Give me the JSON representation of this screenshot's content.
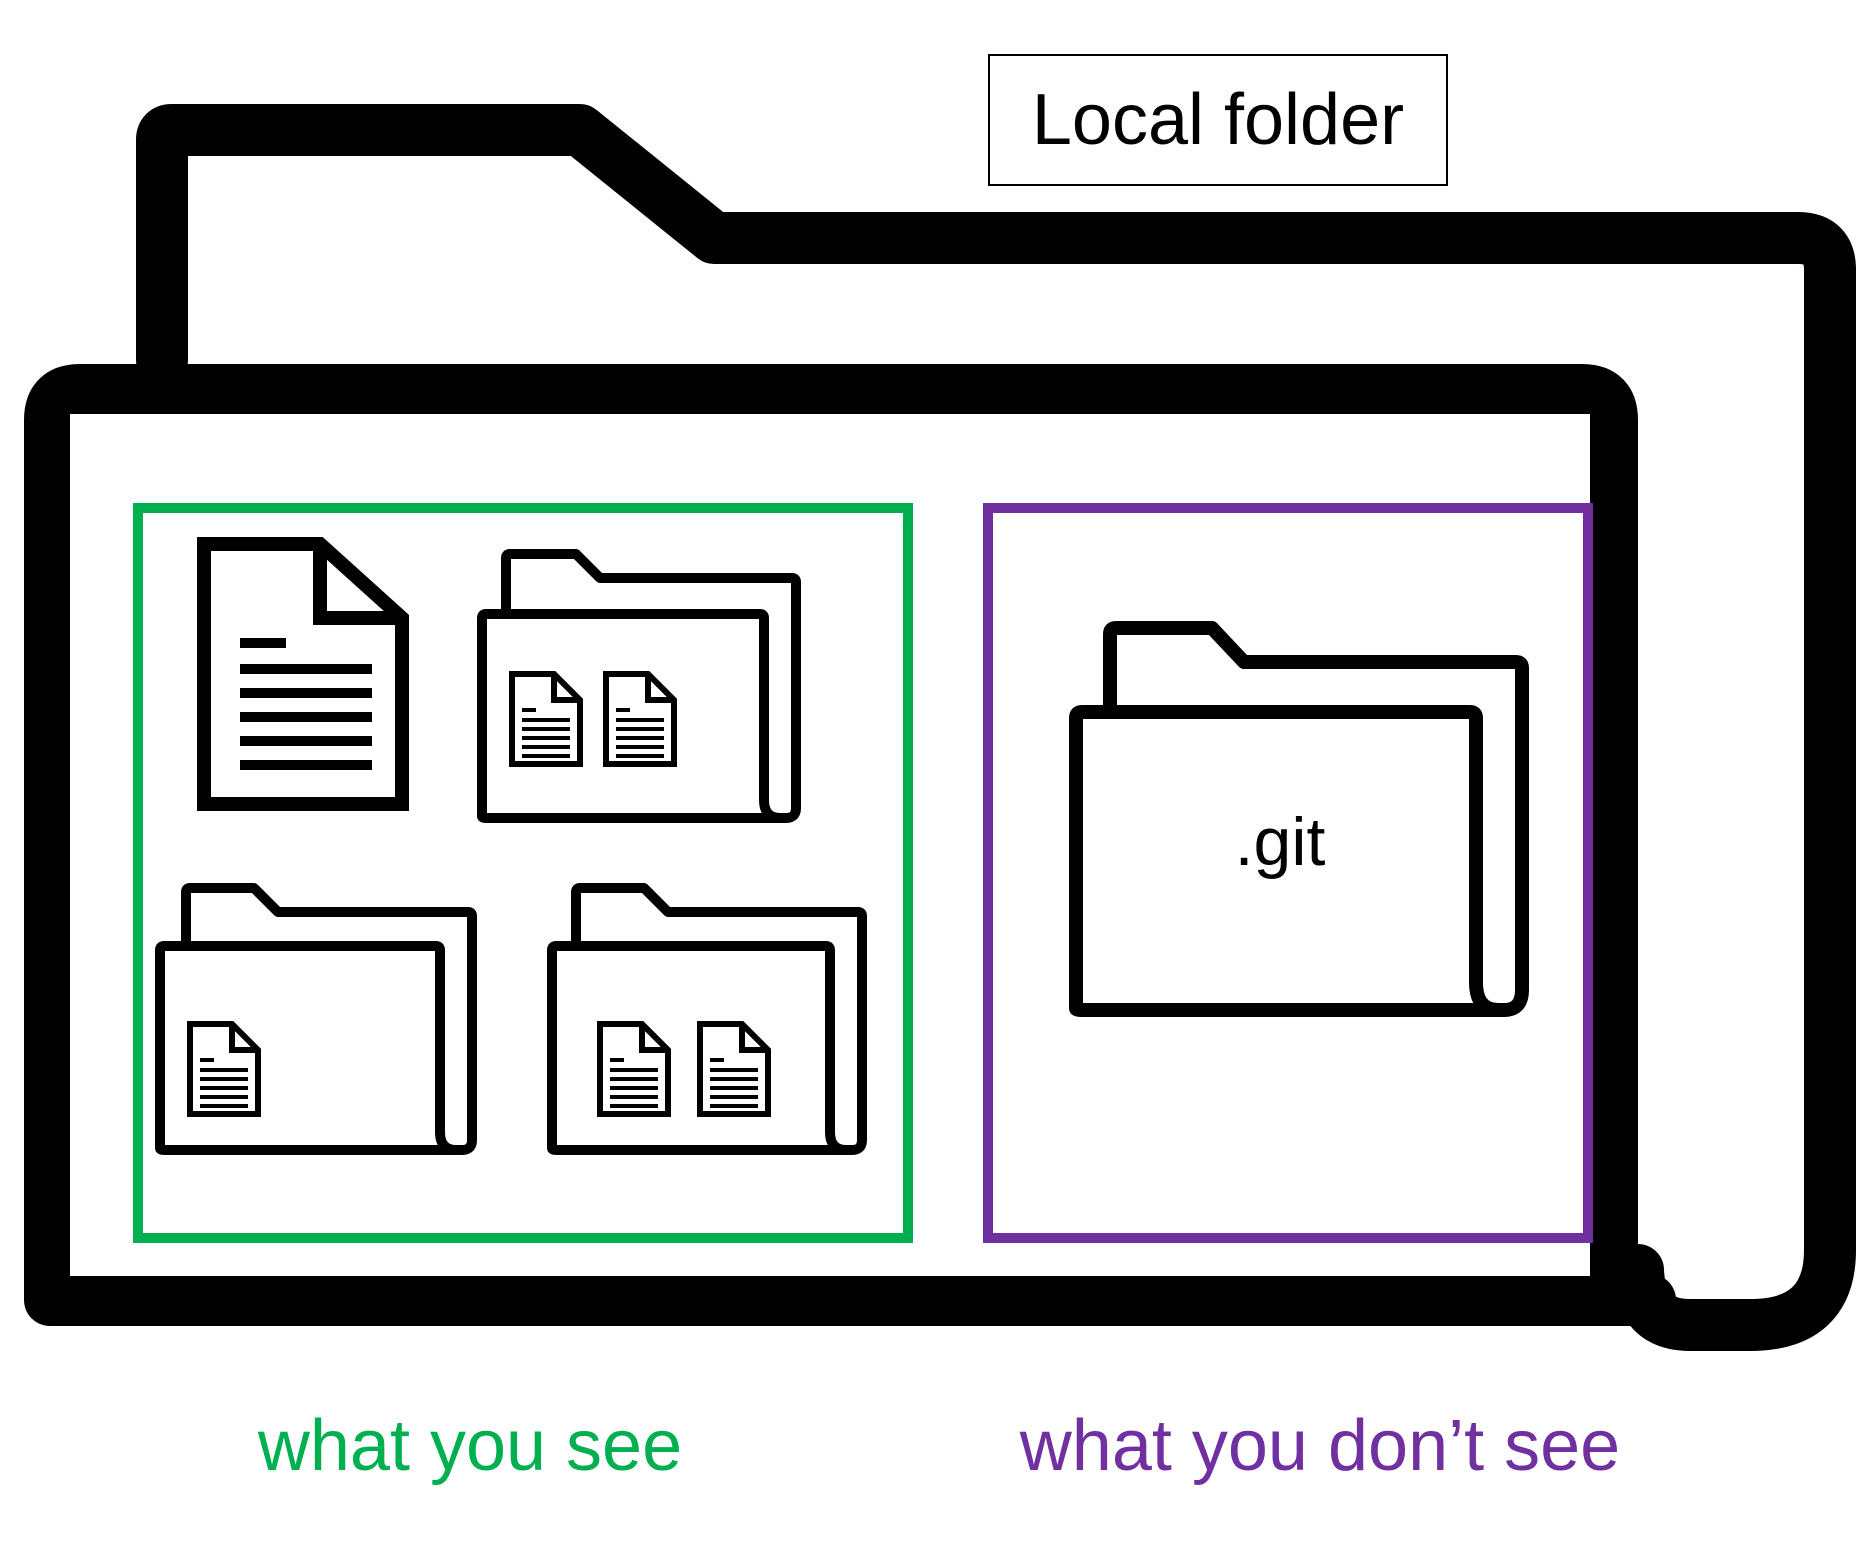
{
  "title": "Local folder",
  "git_folder_label": ".git",
  "captions": {
    "visible": "what you see",
    "hidden": "what you don’t see"
  },
  "colors": {
    "visible": "#00b050",
    "hidden": "#7030a0",
    "outline": "#000000"
  },
  "icons": [
    "folder-icon",
    "document-icon"
  ]
}
